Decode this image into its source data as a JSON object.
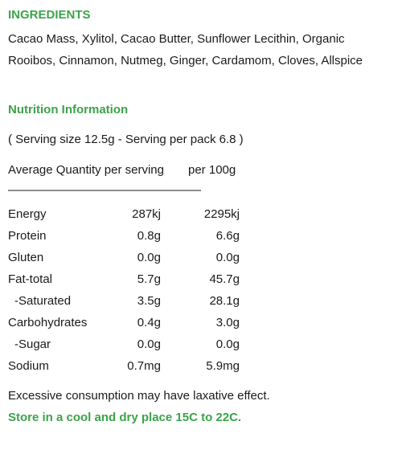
{
  "ingredients": {
    "heading": "INGREDIENTS",
    "text": "Cacao Mass, Xylitol, Cacao Butter, Sunflower Lecithin, Organic Rooibos, Cinnamon, Nutmeg, Ginger, Cardamom, Cloves, Allspice"
  },
  "nutrition": {
    "heading": "Nutrition Information",
    "serving_info": "( Serving size 12.5g - Serving per pack 6.8 )",
    "column_avg": "Average Quantity per serving",
    "column_100g": "per 100g",
    "divider": "————————————————",
    "rows": [
      {
        "name": "Energy",
        "serving": "287kj",
        "per100": "2295kj"
      },
      {
        "name": "Protein",
        "serving": "0.8g",
        "per100": "6.6g"
      },
      {
        "name": "Gluten",
        "serving": "0.0g",
        "per100": "0.0g"
      },
      {
        "name": "Fat-total",
        "serving": "5.7g",
        "per100": "45.7g"
      },
      {
        "name": "-Saturated",
        "serving": "3.5g",
        "per100": "28.1g"
      },
      {
        "name": "Carbohydrates",
        "serving": "0.4g",
        "per100": "3.0g"
      },
      {
        "name": "-Sugar",
        "serving": "0.0g",
        "per100": "0.0g"
      },
      {
        "name": "Sodium",
        "serving": "0.7mg",
        "per100": "5.9mg"
      }
    ]
  },
  "warning": "Excessive consumption may have laxative effect.",
  "storage": "Store in a cool and dry place 15C to 22C.",
  "colors": {
    "accent_green": "#3ca34a",
    "text": "#1a1a1a",
    "background": "#ffffff"
  }
}
